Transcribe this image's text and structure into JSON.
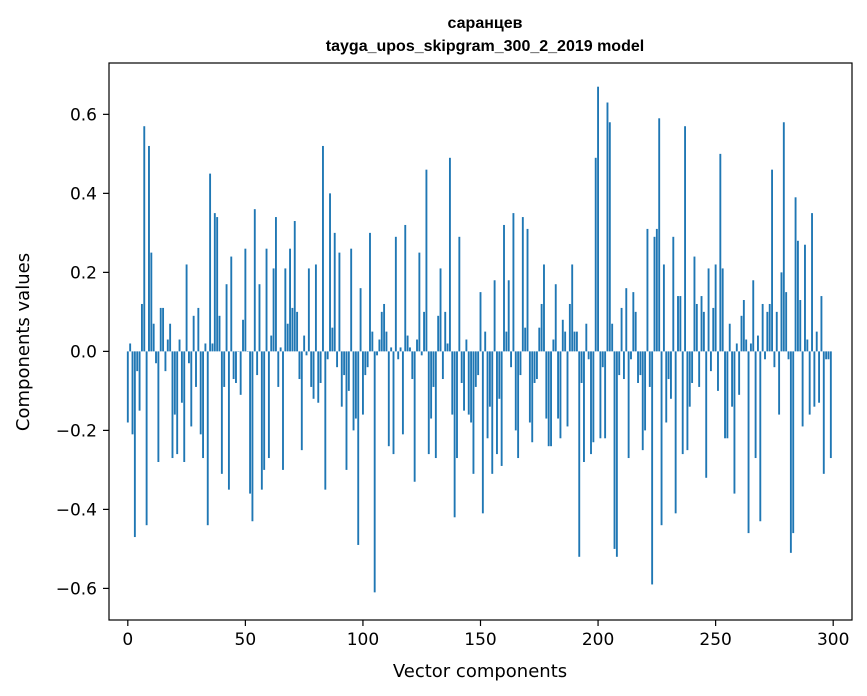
{
  "chart_data": {
    "type": "bar",
    "title": "саранцев",
    "subtitle": "tayga_upos_skipgram_300_2_2019 model",
    "xlabel": "Vector components",
    "ylabel": "Components values",
    "xlim": [
      -8,
      308
    ],
    "ylim": [
      -0.68,
      0.73
    ],
    "xticks": [
      0,
      50,
      100,
      150,
      200,
      250,
      300
    ],
    "xtick_labels": [
      "0",
      "50",
      "100",
      "150",
      "200",
      "250",
      "300"
    ],
    "yticks": [
      -0.6,
      -0.4,
      -0.2,
      0.0,
      0.2,
      0.4,
      0.6
    ],
    "ytick_labels": [
      "−0.6",
      "−0.4",
      "−0.2",
      "0.0",
      "0.2",
      "0.4",
      "0.6"
    ],
    "bar_color": "#1f77b4",
    "grid": false,
    "legend": false,
    "x": [
      0,
      1,
      2,
      3,
      4,
      5,
      6,
      7,
      8,
      9,
      10,
      11,
      12,
      13,
      14,
      15,
      16,
      17,
      18,
      19,
      20,
      21,
      22,
      23,
      24,
      25,
      26,
      27,
      28,
      29,
      30,
      31,
      32,
      33,
      34,
      35,
      36,
      37,
      38,
      39,
      40,
      41,
      42,
      43,
      44,
      45,
      46,
      47,
      48,
      49,
      50,
      51,
      52,
      53,
      54,
      55,
      56,
      57,
      58,
      59,
      60,
      61,
      62,
      63,
      64,
      65,
      66,
      67,
      68,
      69,
      70,
      71,
      72,
      73,
      74,
      75,
      76,
      77,
      78,
      79,
      80,
      81,
      82,
      83,
      84,
      85,
      86,
      87,
      88,
      89,
      90,
      91,
      92,
      93,
      94,
      95,
      96,
      97,
      98,
      99,
      100,
      101,
      102,
      103,
      104,
      105,
      106,
      107,
      108,
      109,
      110,
      111,
      112,
      113,
      114,
      115,
      116,
      117,
      118,
      119,
      120,
      121,
      122,
      123,
      124,
      125,
      126,
      127,
      128,
      129,
      130,
      131,
      132,
      133,
      134,
      135,
      136,
      137,
      138,
      139,
      140,
      141,
      142,
      143,
      144,
      145,
      146,
      147,
      148,
      149,
      150,
      151,
      152,
      153,
      154,
      155,
      156,
      157,
      158,
      159,
      160,
      161,
      162,
      163,
      164,
      165,
      166,
      167,
      168,
      169,
      170,
      171,
      172,
      173,
      174,
      175,
      176,
      177,
      178,
      179,
      180,
      181,
      182,
      183,
      184,
      185,
      186,
      187,
      188,
      189,
      190,
      191,
      192,
      193,
      194,
      195,
      196,
      197,
      198,
      199,
      200,
      201,
      202,
      203,
      204,
      205,
      206,
      207,
      208,
      209,
      210,
      211,
      212,
      213,
      214,
      215,
      216,
      217,
      218,
      219,
      220,
      221,
      222,
      223,
      224,
      225,
      226,
      227,
      228,
      229,
      230,
      231,
      232,
      233,
      234,
      235,
      236,
      237,
      238,
      239,
      240,
      241,
      242,
      243,
      244,
      245,
      246,
      247,
      248,
      249,
      250,
      251,
      252,
      253,
      254,
      255,
      256,
      257,
      258,
      259,
      260,
      261,
      262,
      263,
      264,
      265,
      266,
      267,
      268,
      269,
      270,
      271,
      272,
      273,
      274,
      275,
      276,
      277,
      278,
      279,
      280,
      281,
      282,
      283,
      284,
      285,
      286,
      287,
      288,
      289,
      290,
      291,
      292,
      293,
      294,
      295,
      296,
      297,
      298,
      299
    ],
    "values": [
      -0.18,
      0.02,
      -0.21,
      -0.47,
      -0.05,
      -0.15,
      0.12,
      0.57,
      -0.44,
      0.52,
      0.25,
      0.07,
      -0.03,
      -0.28,
      0.11,
      0.11,
      -0.05,
      0.03,
      0.07,
      -0.27,
      -0.16,
      -0.26,
      0.03,
      -0.13,
      -0.28,
      0.22,
      -0.03,
      -0.19,
      0.09,
      -0.09,
      0.11,
      -0.21,
      -0.27,
      0.02,
      -0.44,
      0.45,
      0.02,
      0.35,
      0.34,
      0.09,
      -0.31,
      -0.09,
      0.17,
      -0.35,
      0.24,
      -0.07,
      -0.08,
      0.0,
      -0.11,
      0.08,
      0.26,
      0.0,
      -0.36,
      -0.43,
      0.36,
      -0.06,
      0.17,
      -0.35,
      -0.3,
      0.26,
      -0.27,
      0.04,
      0.21,
      0.34,
      -0.09,
      0.01,
      -0.3,
      0.21,
      0.07,
      0.26,
      0.11,
      0.33,
      0.1,
      -0.07,
      -0.25,
      0.04,
      -0.01,
      0.21,
      -0.09,
      -0.12,
      0.22,
      -0.13,
      -0.08,
      0.52,
      -0.35,
      -0.02,
      0.4,
      0.06,
      0.3,
      -0.04,
      0.25,
      -0.14,
      -0.06,
      -0.3,
      -0.1,
      0.26,
      -0.2,
      -0.17,
      -0.49,
      0.16,
      -0.16,
      -0.06,
      -0.04,
      0.3,
      0.05,
      -0.61,
      -0.01,
      0.03,
      0.1,
      0.12,
      0.05,
      -0.24,
      0.01,
      -0.26,
      0.29,
      -0.02,
      0.01,
      -0.21,
      0.32,
      0.04,
      0.01,
      -0.07,
      -0.33,
      0.03,
      0.25,
      -0.01,
      0.1,
      0.46,
      -0.26,
      -0.17,
      -0.09,
      -0.27,
      0.09,
      0.21,
      -0.07,
      0.1,
      0.02,
      0.49,
      -0.16,
      -0.42,
      -0.27,
      0.29,
      -0.08,
      -0.15,
      0.03,
      -0.16,
      -0.18,
      -0.31,
      -0.09,
      -0.06,
      0.15,
      -0.41,
      0.05,
      -0.22,
      -0.14,
      -0.31,
      0.18,
      -0.26,
      -0.12,
      -0.29,
      0.32,
      0.05,
      0.18,
      -0.04,
      0.35,
      -0.2,
      -0.27,
      -0.06,
      0.34,
      0.06,
      0.31,
      -0.18,
      -0.23,
      -0.08,
      -0.07,
      0.06,
      0.12,
      0.22,
      -0.17,
      -0.24,
      -0.24,
      0.03,
      0.17,
      -0.17,
      -0.22,
      0.08,
      0.05,
      -0.19,
      0.12,
      0.22,
      0.05,
      0.05,
      -0.52,
      -0.08,
      -0.28,
      0.07,
      -0.02,
      -0.26,
      -0.23,
      0.49,
      0.67,
      -0.22,
      -0.04,
      -0.22,
      0.63,
      0.58,
      0.07,
      -0.5,
      -0.52,
      -0.06,
      0.11,
      -0.07,
      0.16,
      -0.27,
      -0.02,
      0.15,
      0.1,
      -0.08,
      -0.06,
      -0.25,
      -0.2,
      0.31,
      -0.09,
      -0.59,
      0.29,
      0.31,
      0.59,
      -0.44,
      0.22,
      -0.18,
      -0.07,
      -0.12,
      0.29,
      -0.41,
      0.14,
      0.14,
      -0.26,
      0.57,
      -0.25,
      -0.14,
      -0.08,
      0.24,
      0.12,
      -0.09,
      0.14,
      0.1,
      -0.32,
      0.21,
      -0.05,
      0.11,
      0.22,
      -0.1,
      0.5,
      0.21,
      -0.22,
      -0.22,
      0.07,
      -0.14,
      -0.36,
      0.02,
      -0.11,
      0.09,
      0.13,
      0.03,
      -0.46,
      0.02,
      0.18,
      -0.27,
      0.04,
      -0.43,
      0.12,
      -0.02,
      0.1,
      0.12,
      0.46,
      -0.04,
      0.1,
      -0.16,
      0.2,
      0.58,
      0.15,
      -0.02,
      -0.51,
      -0.46,
      0.39,
      0.28,
      0.13,
      -0.19,
      0.27,
      0.03,
      -0.16,
      0.35,
      -0.14,
      0.05,
      -0.13,
      0.14,
      -0.31,
      -0.02,
      -0.02,
      -0.27
    ]
  }
}
